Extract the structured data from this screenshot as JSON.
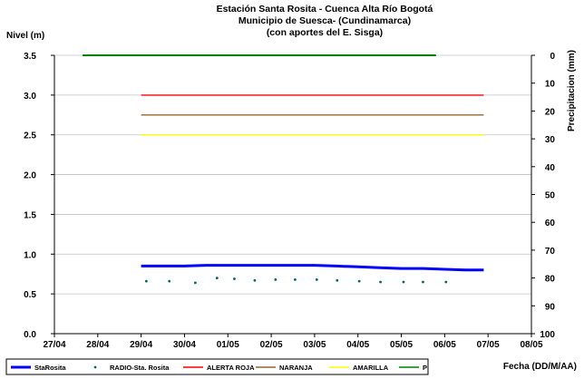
{
  "chart_data": {
    "type": "line",
    "title_lines": [
      "Estación Santa Rosita - Cuenca Alta Río Bogotá",
      "Municipio de Suesca- (Cundinamarca)",
      "(con aportes del  E. Sisga)"
    ],
    "ylabel_left": "Nivel (m)",
    "ylabel_right": "Precipitacion (mm)",
    "xlabel": "Fecha (DD/M/AA)",
    "x_tick_labels": [
      "27/04",
      "28/04",
      "29/04",
      "30/04",
      "01/05",
      "02/05",
      "03/05",
      "04/05",
      "05/05",
      "06/05",
      "07/05",
      "08/05"
    ],
    "x_range_days": [
      0,
      11
    ],
    "y_left_ticks": [
      "0.0",
      "0.5",
      "1.0",
      "1.5",
      "2.0",
      "2.5",
      "3.0",
      "3.5"
    ],
    "ylim_left": [
      0,
      3.5
    ],
    "y_right_ticks": [
      "0",
      "10",
      "20",
      "30",
      "40",
      "50",
      "60",
      "70",
      "80",
      "90",
      "100"
    ],
    "ylim_right_inverted": [
      0,
      100
    ],
    "grid": "horizontal",
    "legend_position": "bottom",
    "series": [
      {
        "name": "StaRosita",
        "kind": "line",
        "color": "#0000ff",
        "points": [
          [
            2.0,
            0.85
          ],
          [
            2.5,
            0.85
          ],
          [
            3.0,
            0.85
          ],
          [
            3.5,
            0.86
          ],
          [
            4.0,
            0.86
          ],
          [
            4.5,
            0.86
          ],
          [
            5.0,
            0.86
          ],
          [
            5.5,
            0.86
          ],
          [
            6.0,
            0.86
          ],
          [
            6.5,
            0.85
          ],
          [
            7.0,
            0.84
          ],
          [
            7.5,
            0.83
          ],
          [
            8.0,
            0.82
          ],
          [
            8.5,
            0.82
          ],
          [
            9.0,
            0.81
          ],
          [
            9.5,
            0.8
          ],
          [
            9.9,
            0.8
          ]
        ]
      },
      {
        "name": "RADIO-Sta. Rosita",
        "kind": "points",
        "color": "#006666",
        "points": [
          [
            2.12,
            0.66
          ],
          [
            2.65,
            0.66
          ],
          [
            3.25,
            0.64
          ],
          [
            3.75,
            0.7
          ],
          [
            4.15,
            0.69
          ],
          [
            4.62,
            0.67
          ],
          [
            5.1,
            0.68
          ],
          [
            5.55,
            0.68
          ],
          [
            6.05,
            0.68
          ],
          [
            6.52,
            0.67
          ],
          [
            7.03,
            0.66
          ],
          [
            7.52,
            0.65
          ],
          [
            8.05,
            0.65
          ],
          [
            8.5,
            0.65
          ],
          [
            9.03,
            0.65
          ]
        ]
      },
      {
        "name": "ALERTA ROJA",
        "kind": "line",
        "color": "#ff0000",
        "points": [
          [
            2.0,
            3.0
          ],
          [
            9.9,
            3.0
          ]
        ]
      },
      {
        "name": "NARANJA",
        "kind": "line",
        "color": "#996633",
        "points": [
          [
            2.0,
            2.75
          ],
          [
            9.9,
            2.75
          ]
        ]
      },
      {
        "name": "AMARILLA",
        "kind": "line",
        "color": "#ffff00",
        "points": [
          [
            2.0,
            2.5
          ],
          [
            9.9,
            2.5
          ]
        ]
      },
      {
        "name": "P",
        "kind": "line",
        "axis": "right",
        "color": "#008000",
        "points": [
          [
            0.65,
            0
          ],
          [
            8.8,
            0
          ]
        ]
      }
    ]
  }
}
